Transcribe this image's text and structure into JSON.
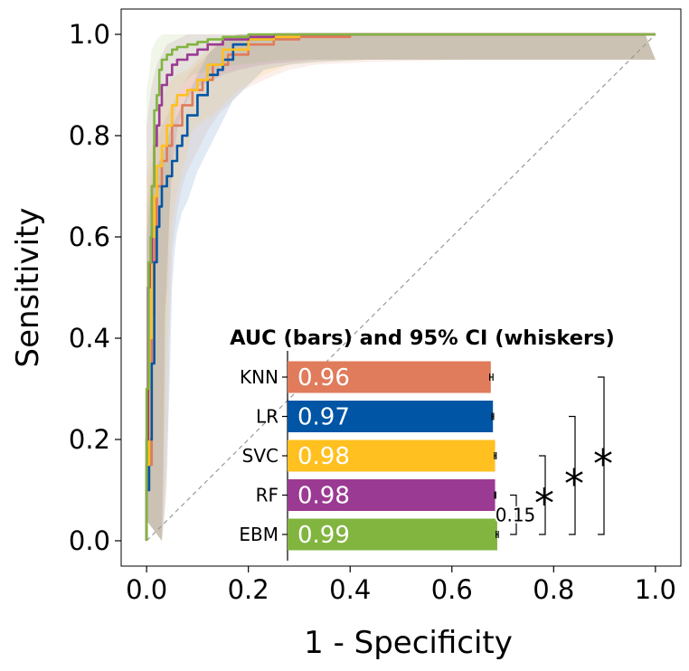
{
  "chart_data": [
    {
      "type": "line",
      "title": "",
      "xlabel": "1 - Specificity",
      "ylabel": "Sensitivity",
      "xlim": [
        -0.05,
        1.05
      ],
      "ylim": [
        -0.05,
        1.05
      ],
      "xticks": [
        "0.0",
        "0.2",
        "0.4",
        "0.6",
        "0.8",
        "1.0"
      ],
      "yticks": [
        "0.0",
        "0.2",
        "0.4",
        "0.6",
        "0.8",
        "1.0"
      ],
      "grid": false,
      "legend": "none",
      "series": [
        {
          "key": "KNN",
          "color": "#E07B5B",
          "x": [
            0,
            0.01,
            0.015,
            0.02,
            0.03,
            0.04,
            0.05,
            0.07,
            0.09,
            0.11,
            0.13,
            0.16,
            0.2,
            0.25,
            0.3,
            0.4,
            0.6,
            1.0
          ],
          "y": [
            0,
            0.15,
            0.45,
            0.62,
            0.7,
            0.75,
            0.78,
            0.82,
            0.86,
            0.89,
            0.91,
            0.94,
            0.96,
            0.98,
            0.99,
            0.995,
            1.0,
            1.0
          ]
        },
        {
          "key": "LR",
          "color": "#0055A5",
          "x": [
            0,
            0.005,
            0.01,
            0.015,
            0.02,
            0.025,
            0.03,
            0.04,
            0.05,
            0.06,
            0.07,
            0.08,
            0.1,
            0.12,
            0.14,
            0.15,
            0.17,
            0.2,
            0.25,
            0.3,
            0.4,
            1.0
          ],
          "y": [
            0,
            0.1,
            0.2,
            0.35,
            0.55,
            0.62,
            0.66,
            0.7,
            0.72,
            0.75,
            0.78,
            0.8,
            0.84,
            0.88,
            0.92,
            0.93,
            0.95,
            0.98,
            0.99,
            0.995,
            1.0,
            1.0
          ]
        },
        {
          "key": "SVC",
          "color": "#FFC020",
          "x": [
            0,
            0.005,
            0.01,
            0.015,
            0.02,
            0.03,
            0.04,
            0.05,
            0.06,
            0.08,
            0.1,
            0.12,
            0.15,
            0.2,
            0.25,
            0.3,
            0.4,
            1.0
          ],
          "y": [
            0,
            0.15,
            0.4,
            0.6,
            0.68,
            0.74,
            0.78,
            0.82,
            0.86,
            0.88,
            0.89,
            0.91,
            0.94,
            0.97,
            0.99,
            0.995,
            1.0,
            1.0
          ]
        },
        {
          "key": "RF",
          "color": "#9B3A93",
          "x": [
            0,
            0.003,
            0.006,
            0.01,
            0.015,
            0.02,
            0.025,
            0.03,
            0.04,
            0.05,
            0.06,
            0.08,
            0.1,
            0.12,
            0.15,
            0.2,
            0.25,
            0.3,
            0.4,
            1.0
          ],
          "y": [
            0,
            0.2,
            0.5,
            0.55,
            0.7,
            0.78,
            0.82,
            0.86,
            0.9,
            0.92,
            0.94,
            0.95,
            0.96,
            0.97,
            0.98,
            0.99,
            0.995,
            1.0,
            1.0,
            1.0
          ]
        },
        {
          "key": "EBM",
          "color": "#82B440",
          "x": [
            0,
            0.004,
            0.008,
            0.01,
            0.015,
            0.02,
            0.025,
            0.03,
            0.04,
            0.05,
            0.06,
            0.08,
            0.1,
            0.12,
            0.15,
            0.2,
            0.25,
            0.3,
            1.0
          ],
          "y": [
            0,
            0.3,
            0.55,
            0.6,
            0.7,
            0.85,
            0.88,
            0.93,
            0.95,
            0.96,
            0.97,
            0.975,
            0.98,
            0.985,
            0.99,
            0.995,
            1.0,
            1.0,
            1.0
          ]
        }
      ],
      "reference_line": {
        "x": [
          0,
          1
        ],
        "y": [
          0,
          1
        ],
        "color": "#999999",
        "style": "dashed"
      }
    },
    {
      "type": "bar",
      "orientation": "horizontal",
      "title": "AUC (bars) and 95% CI (whiskers)",
      "categories": [
        "KNN",
        "LR",
        "SVC",
        "RF",
        "EBM"
      ],
      "values": [
        0.96,
        0.97,
        0.98,
        0.98,
        0.99
      ],
      "value_labels": [
        "0.96",
        "0.97",
        "0.98",
        "0.98",
        "0.99"
      ],
      "colors": [
        "#E07B5B",
        "#0055A5",
        "#FFC020",
        "#9B3A93",
        "#82B440"
      ],
      "ci_low": [
        0.955,
        0.965,
        0.977,
        0.978,
        0.985
      ],
      "ci_high": [
        0.97,
        0.973,
        0.985,
        0.983,
        0.995
      ],
      "significance": [
        {
          "from": "EBM",
          "to": "RF",
          "label": "0.15"
        },
        {
          "from": "EBM",
          "to": "SVC",
          "label": "*"
        },
        {
          "from": "EBM",
          "to": "LR",
          "label": "*"
        },
        {
          "from": "EBM",
          "to": "KNN",
          "label": "*"
        }
      ]
    }
  ]
}
